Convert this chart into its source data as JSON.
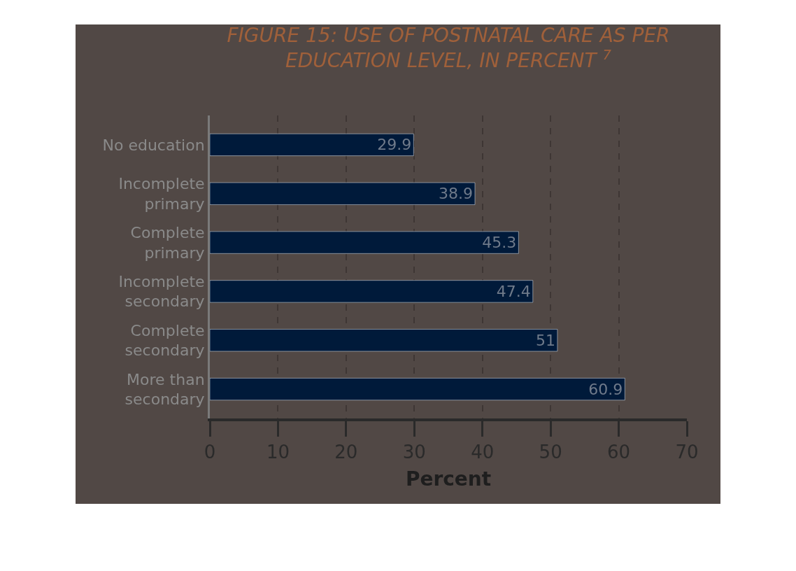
{
  "chart_data": {
    "type": "bar",
    "orientation": "horizontal",
    "title": "FIGURE 15: USE OF POSTNATAL CARE AS PER EDUCATION LEVEL, IN PERCENT $^{7}$",
    "xlabel": "Percent",
    "categories": [
      "No education",
      "Incomplete primary",
      "Complete primary",
      "Incomplete secondary",
      "Complete secondary",
      "More than secondary"
    ],
    "values": [
      29.9,
      38.9,
      45.3,
      47.4,
      51,
      60.9
    ],
    "color": "#001a3a",
    "data_labels": true,
    "xlim": [
      0,
      70
    ],
    "xticks": [
      0,
      10,
      20,
      30,
      40,
      50,
      60,
      70
    ],
    "grid": "x",
    "legend": false
  }
}
